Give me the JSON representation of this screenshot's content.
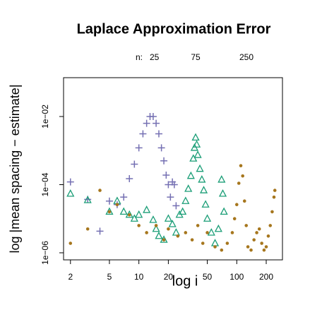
{
  "chart_data": {
    "type": "scatter",
    "title": "Laplace Approximation Error",
    "xlabel": "log i",
    "ylabel": "log |mean spacing − estimate|",
    "legend_title": "n:",
    "log_x": true,
    "log_y": true,
    "xlim": [
      1.7,
      293
    ],
    "ylim": [
      6.2e-07,
      0.138
    ],
    "xticks": [
      2,
      5,
      10,
      20,
      50,
      100,
      200
    ],
    "yticks": [
      {
        "value": 1e-06,
        "label": "1e−06"
      },
      {
        "value": 0.0001,
        "label": "1e−04"
      },
      {
        "value": 0.01,
        "label": "1e−02"
      }
    ],
    "series": [
      {
        "name": "25",
        "color": "#7570b3",
        "marker": "plus",
        "x": [
          2,
          3,
          4,
          5,
          6,
          7,
          8,
          9,
          10,
          11,
          12,
          13,
          14,
          15,
          16,
          17,
          18,
          19,
          20,
          21,
          22,
          23,
          24
        ],
        "values": [
          0.00012,
          3.7e-05,
          4.3e-06,
          3.3e-05,
          2.6e-05,
          4.3e-05,
          0.00015,
          0.0004,
          0.0012,
          0.0031,
          0.0063,
          0.01,
          0.01,
          0.0063,
          0.0031,
          0.0012,
          0.0005,
          0.00019,
          0.0001,
          4.3e-05,
          0.00012,
          0.0001,
          2.4e-05
        ]
      },
      {
        "name": "75",
        "color": "#1b9e77",
        "marker": "triangle",
        "x": [
          2,
          3,
          5,
          6,
          7,
          8,
          9,
          10,
          12,
          14,
          15,
          16,
          18,
          20,
          22,
          24,
          26,
          28,
          30,
          32,
          34,
          36,
          37,
          38,
          39,
          40,
          42,
          44,
          46,
          48,
          50,
          55,
          60,
          65,
          70,
          72,
          74
        ],
        "values": [
          5.4e-05,
          3.5e-05,
          1.6e-05,
          3.3e-05,
          1.6e-05,
          1.3e-05,
          1e-05,
          1.3e-05,
          1.8e-05,
          9.2e-06,
          5e-06,
          3.1e-06,
          2.4e-06,
          1e-05,
          6.9e-06,
          3.9e-06,
          1.3e-05,
          1.6e-05,
          3.3e-05,
          7.5e-05,
          0.00018,
          0.00058,
          0.0012,
          0.0024,
          0.0015,
          0.00074,
          0.00029,
          0.00014,
          6.8e-05,
          2.6e-05,
          1e-05,
          3.9e-06,
          1.9e-06,
          5e-06,
          0.00014,
          5.4e-05,
          1.6e-05
        ]
      },
      {
        "name": "250",
        "color": "#a6761d",
        "marker": "circle",
        "x": [
          2,
          3,
          4,
          5,
          6,
          8,
          10,
          12,
          15,
          18,
          20,
          25,
          30,
          35,
          40,
          45,
          50,
          60,
          70,
          80,
          90,
          95,
          100,
          105,
          110,
          115,
          120,
          125,
          130,
          140,
          150,
          160,
          170,
          180,
          190,
          200,
          210,
          220,
          230,
          240,
          245
        ],
        "values": [
          1.9e-06,
          5e-06,
          6.8e-05,
          1.6e-05,
          2.6e-05,
          1.3e-05,
          6.3e-06,
          3.9e-06,
          6.3e-06,
          2.4e-06,
          5e-06,
          3.1e-06,
          3.9e-06,
          2.4e-06,
          6.3e-06,
          1.9e-06,
          3.9e-06,
          1.5e-06,
          1.2e-06,
          1.9e-06,
          3.9e-06,
          1e-05,
          2.6e-05,
          0.00011,
          0.00036,
          0.00018,
          3.3e-05,
          6.3e-06,
          1.5e-06,
          1.2e-06,
          2.4e-06,
          3.9e-06,
          5e-06,
          1.9e-06,
          1.2e-06,
          1.5e-06,
          3.1e-06,
          6.3e-06,
          1.6e-05,
          4.3e-05,
          6.8e-05
        ]
      }
    ]
  }
}
